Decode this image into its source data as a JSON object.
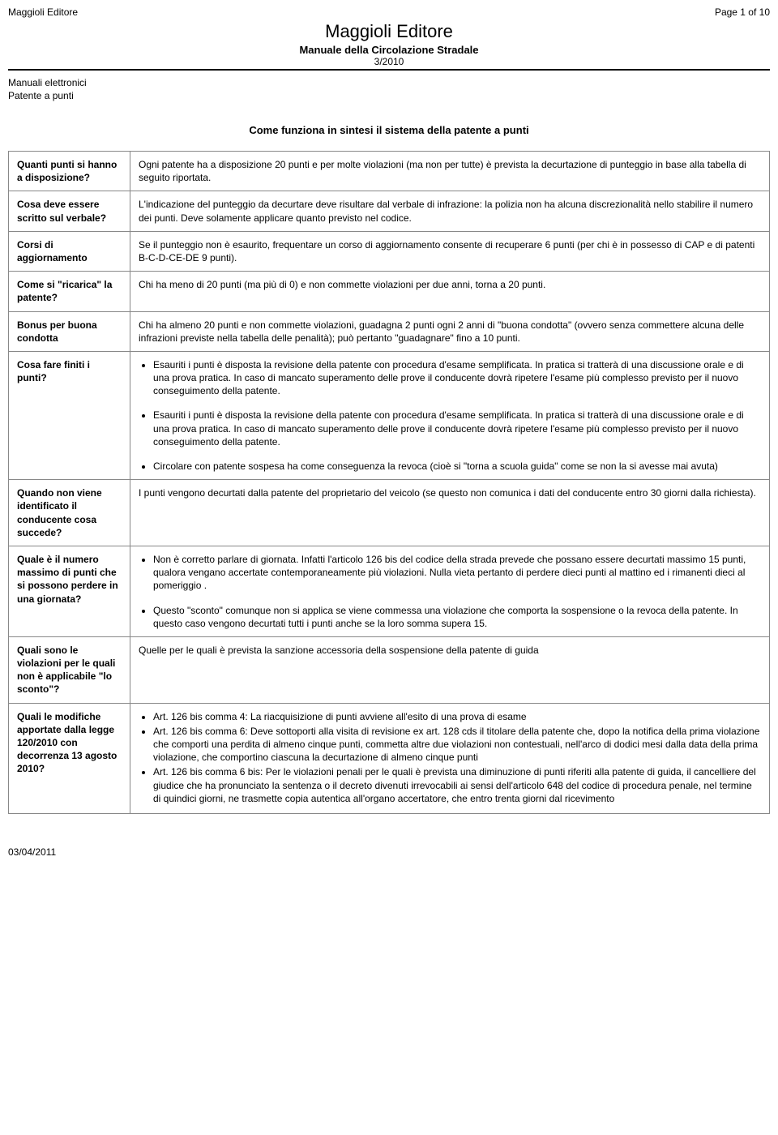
{
  "header": {
    "publisher_tl": "Maggioli Editore",
    "page_indicator": "Page 1 of 10",
    "title": "Maggioli Editore",
    "subtitle": "Manuale della Circolazione Stradale",
    "issue": "3/2010"
  },
  "breadcrumb": {
    "line1": "Manuali elettronici",
    "line2": "Patente a punti"
  },
  "main_title": "Come funziona in sintesi il sistema della patente a punti",
  "faq": [
    {
      "q": "Quanti punti si hanno a disposizione?",
      "type": "text",
      "a": "Ogni patente ha a disposizione 20 punti e per molte violazioni (ma non per tutte) è prevista la decurtazione di punteggio in base alla tabella di seguito riportata."
    },
    {
      "q": "Cosa deve essere scritto sul verbale?",
      "type": "text",
      "a": "L'indicazione del punteggio da decurtare deve risultare dal verbale di infrazione: la polizia non ha alcuna discrezionalità nello stabilire il numero dei punti. Deve solamente applicare quanto previsto nel codice."
    },
    {
      "q": "Corsi di aggiornamento",
      "type": "text",
      "a": "Se il punteggio non è esaurito, frequentare un corso di aggiornamento consente di recuperare 6 punti (per chi è in possesso di CAP e di patenti B-C-D-CE-DE 9 punti)."
    },
    {
      "q": "Come si \"ricarica\" la patente?",
      "type": "text",
      "a": "Chi ha meno di 20 punti (ma più di 0) e non commette violazioni per due anni, torna a 20 punti."
    },
    {
      "q": "Bonus per buona condotta",
      "type": "text",
      "a": "Chi ha almeno 20 punti e non commette violazioni, guadagna 2 punti ogni 2 anni di \"buona condotta\" (ovvero senza commettere alcuna delle infrazioni previste nella tabella delle penalità); può pertanto \"guadagnare\" fino a 10 punti."
    },
    {
      "q": "Cosa fare finiti i punti?",
      "type": "list",
      "items": [
        "Esauriti i punti è disposta la revisione della patente con procedura d'esame semplificata. In pratica si tratterà di una discussione orale e di una prova pratica. In caso di mancato superamento delle prove il conducente dovrà ripetere l'esame più complesso previsto per il nuovo conseguimento della patente.",
        "Esauriti i punti è disposta la revisione della patente con procedura d'esame semplificata. In pratica si tratterà di una discussione orale e di una prova pratica. In caso di mancato superamento delle prove il conducente dovrà ripetere l'esame più complesso previsto per il nuovo conseguimento della patente.",
        "Circolare con patente sospesa ha come conseguenza la revoca (cioè si \"torna a scuola guida\" come se non la si avesse mai avuta)"
      ]
    },
    {
      "q": "Quando non viene identificato il conducente cosa succede?",
      "type": "text",
      "a": "I punti vengono decurtati dalla patente del proprietario del veicolo (se questo non comunica i dati del conducente entro 30 giorni dalla richiesta)."
    },
    {
      "q": "Quale è il numero massimo di punti che si possono perdere in una giornata?",
      "type": "list",
      "items": [
        "Non è corretto parlare di giornata. Infatti l'articolo 126 bis del codice della strada prevede che possano essere decurtati massimo 15 punti, qualora vengano accertate contemporaneamente più violazioni. Nulla vieta pertanto di perdere dieci punti al mattino ed i rimanenti dieci al pomeriggio .",
        "Questo \"sconto\" comunque non si applica se viene commessa una violazione che comporta la sospensione o la revoca della patente. In questo caso vengono decurtati tutti i punti anche se la loro somma supera 15."
      ]
    },
    {
      "q": "Quali sono le violazioni per le quali non è applicabile \"lo sconto\"?",
      "type": "text",
      "a": "Quelle per le quali è prevista la sanzione accessoria della sospensione della patente di guida"
    },
    {
      "q": "Quali le modifiche apportate dalla legge 120/2010 con decorrenza 13 agosto 2010?",
      "type": "list-tight",
      "items": [
        "Art. 126 bis comma 4: La riacquisizione di punti avviene all'esito di una prova di esame",
        "Art. 126 bis comma 6: Deve sottoporti alla visita di revisione ex art. 128 cds il titolare della patente che, dopo la notifica della prima violazione che comporti una perdita di almeno cinque punti, commetta altre due violazioni non contestuali, nell'arco di dodici mesi dalla data della prima violazione, che comportino ciascuna la decurtazione di almeno cinque punti",
        "Art. 126 bis comma 6 bis: Per le violazioni penali per le quali è prevista una diminuzione di punti riferiti alla patente di guida, il cancelliere del giudice che ha pronunciato la sentenza o il decreto divenuti irrevocabili ai sensi dell'articolo 648 del codice di procedura penale, nel termine di quindici giorni, ne trasmette copia autentica all'organo accertatore, che entro trenta giorni dal ricevimento"
      ]
    }
  ],
  "footer_date": "03/04/2011",
  "colors": {
    "border": "#888888",
    "text": "#000000",
    "bg": "#ffffff"
  }
}
